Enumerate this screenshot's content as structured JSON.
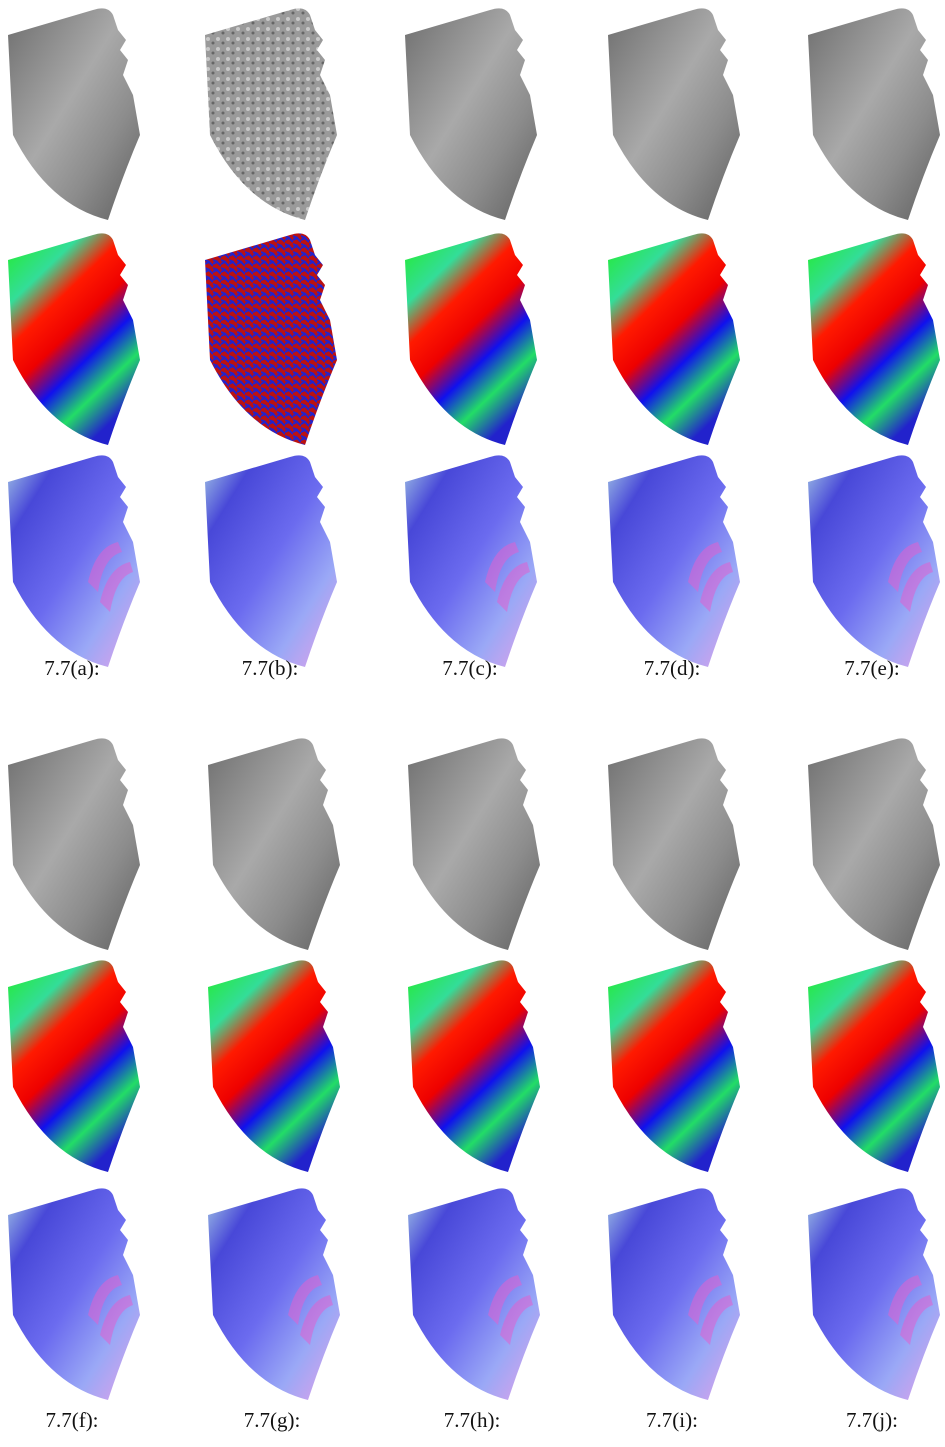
{
  "panels": [
    {
      "label": "7.7(a):"
    },
    {
      "label": "7.7(b):"
    },
    {
      "label": "7.7(c):"
    },
    {
      "label": "7.7(d):"
    },
    {
      "label": "7.7(e):"
    },
    {
      "label": "7.7(f):"
    },
    {
      "label": "7.7(g):"
    },
    {
      "label": "7.7(h):"
    },
    {
      "label": "7.7(i):"
    },
    {
      "label": "7.7(j):"
    }
  ]
}
